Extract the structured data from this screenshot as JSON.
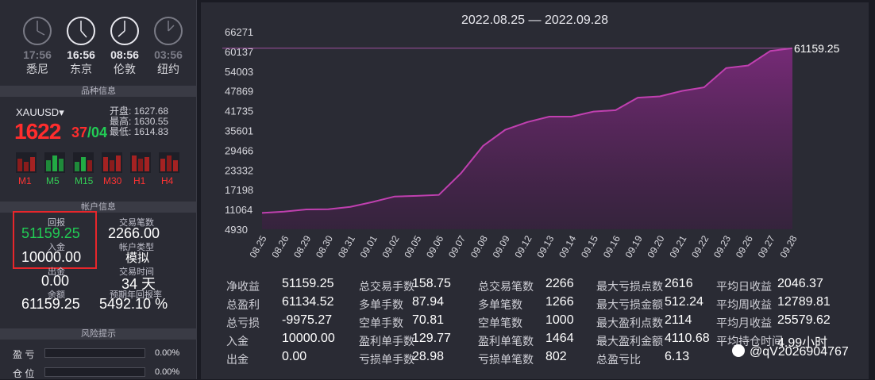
{
  "clocks": [
    {
      "time": "17:56",
      "city": "悉尼",
      "active": false
    },
    {
      "time": "16:56",
      "city": "东京",
      "active": true
    },
    {
      "time": "08:56",
      "city": "伦敦",
      "active": true
    },
    {
      "time": "03:56",
      "city": "纽约",
      "active": false
    }
  ],
  "sections": {
    "symbol_info": "品种信息",
    "account_info": "帐户信息",
    "risk": "风险提示"
  },
  "symbol": {
    "name": "XAUUSD",
    "price_main": "1622",
    "price_overlay_red": "37",
    "price_overlay_green": "/04",
    "open_label": "开盘:",
    "open": "1627.68",
    "high_label": "最高:",
    "high": "1630.55",
    "low_label": "最低:",
    "low": "1614.83"
  },
  "timeframes": [
    "M1",
    "M5",
    "M15",
    "M30",
    "H1",
    "H4"
  ],
  "account": {
    "return_label": "回报",
    "return_value": "51159.25",
    "deposit_label": "入金",
    "deposit_value": "10000.00",
    "withdraw_label": "出金",
    "withdraw_value": "0.00",
    "balance_label": "余额",
    "balance_value": "61159.25",
    "lots_label": "交易笔数",
    "lots_value": "2266.00",
    "type_label": "帐户类型",
    "type_value": "模拟",
    "time_label": "交易时间",
    "time_value": "34 天",
    "annual_label": "预期年回报率",
    "annual_value": "5492.10 %"
  },
  "risk": [
    {
      "label": "盈 亏",
      "pct": "0.00%"
    },
    {
      "label": "仓 位",
      "pct": "0.00%"
    }
  ],
  "chart_data": {
    "type": "area",
    "title": "2022.08.25 — 2022.09.28",
    "x": [
      "08.25",
      "08.26",
      "08.29",
      "08.30",
      "08.31",
      "09.01",
      "09.02",
      "09.05",
      "09.06",
      "09.07",
      "09.08",
      "09.09",
      "09.12",
      "09.13",
      "09.14",
      "09.15",
      "09.16",
      "09.19",
      "09.20",
      "09.21",
      "09.22",
      "09.23",
      "09.26",
      "09.27",
      "09.28"
    ],
    "y": [
      10000,
      10400,
      11100,
      11150,
      11900,
      13400,
      15100,
      15300,
      15600,
      22300,
      30800,
      35800,
      38200,
      39900,
      39900,
      41500,
      41900,
      45800,
      46200,
      47900,
      49000,
      55000,
      55800,
      60300,
      61159.25
    ],
    "yticks": [
      "66271",
      "60137",
      "54003",
      "47869",
      "41735",
      "35601",
      "29466",
      "23332",
      "17198",
      "11064",
      "4930"
    ],
    "ylim": [
      4930,
      66271
    ],
    "end_label": "61159.25",
    "color": "#b03aa5"
  },
  "stats": [
    {
      "label": "净收益",
      "value": "51159.25"
    },
    {
      "label": "总盈利",
      "value": "61134.52"
    },
    {
      "label": "总亏损",
      "value": "-9975.27"
    },
    {
      "label": "入金",
      "value": "10000.00"
    },
    {
      "label": "出金",
      "value": "0.00"
    },
    {
      "label": "总交易手数",
      "value": "158.75"
    },
    {
      "label": "多单手数",
      "value": "87.94"
    },
    {
      "label": "空单手数",
      "value": "70.81"
    },
    {
      "label": "盈利单手数",
      "value": "129.77"
    },
    {
      "label": "亏损单手数",
      "value": "28.98"
    },
    {
      "label": "总交易笔数",
      "value": "2266"
    },
    {
      "label": "多单笔数",
      "value": "1266"
    },
    {
      "label": "空单笔数",
      "value": "1000"
    },
    {
      "label": "盈利单笔数",
      "value": "1464"
    },
    {
      "label": "亏损单笔数",
      "value": "802"
    },
    {
      "label": "最大亏损点数",
      "value": "2616"
    },
    {
      "label": "最大亏损金额",
      "value": "512.24"
    },
    {
      "label": "最大盈利点数",
      "value": "2114"
    },
    {
      "label": "最大盈利金额",
      "value": "4110.68"
    },
    {
      "label": "总盈亏比",
      "value": "6.13"
    },
    {
      "label": "平均日收益",
      "value": "2046.37"
    },
    {
      "label": "平均周收益",
      "value": "12789.81"
    },
    {
      "label": "平均月收益",
      "value": "25579.62"
    },
    {
      "label": "平均持仓时间",
      "value": "4.99小时"
    }
  ],
  "watermark": "@qV2026904767"
}
